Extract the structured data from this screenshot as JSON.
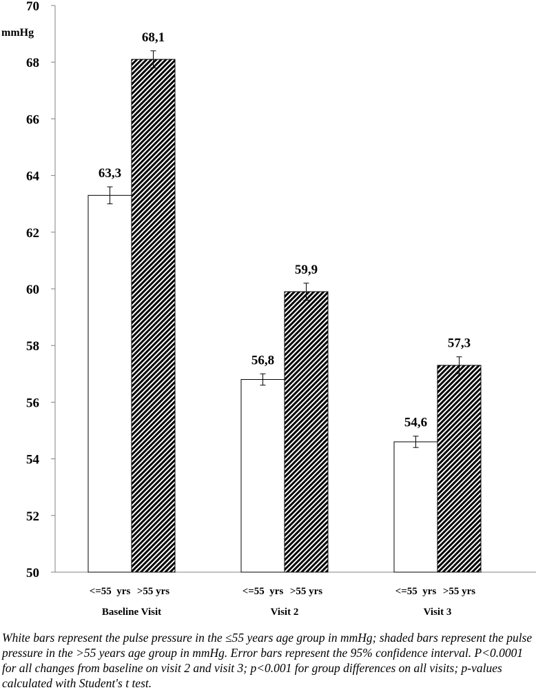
{
  "chart_data": {
    "type": "bar",
    "ylabel": "mmHg",
    "ylim": [
      50,
      70
    ],
    "yticks": [
      50,
      52,
      54,
      56,
      58,
      60,
      62,
      64,
      66,
      68,
      70
    ],
    "grid": false,
    "groups": [
      "Baseline Visit",
      "Visit 2",
      "Visit 3"
    ],
    "series": [
      {
        "name": "<=55  yrs",
        "fill": "#ffffff",
        "values": [
          63.3,
          56.8,
          54.6
        ],
        "labels": [
          "63,3",
          "56,8",
          "54,6"
        ],
        "err": [
          0.3,
          0.2,
          0.2
        ]
      },
      {
        "name": ">55 yrs",
        "fill": "hatched",
        "values": [
          68.1,
          59.9,
          57.3
        ],
        "labels": [
          "68,1",
          "59,9",
          "57,3"
        ],
        "err": [
          0.3,
          0.3,
          0.3
        ]
      }
    ]
  },
  "caption": "White bars represent the pulse pressure in the ≤55 years age group in mmHg; shaded bars represent the pulse pressure in the >55 years age group in mmHg. Error bars represent the 95% confidence interval. P<0.0001 for all changes from baseline on visit 2 and visit 3; p<0.001 for group differences on all visits; p-values calculated with Student's t test."
}
